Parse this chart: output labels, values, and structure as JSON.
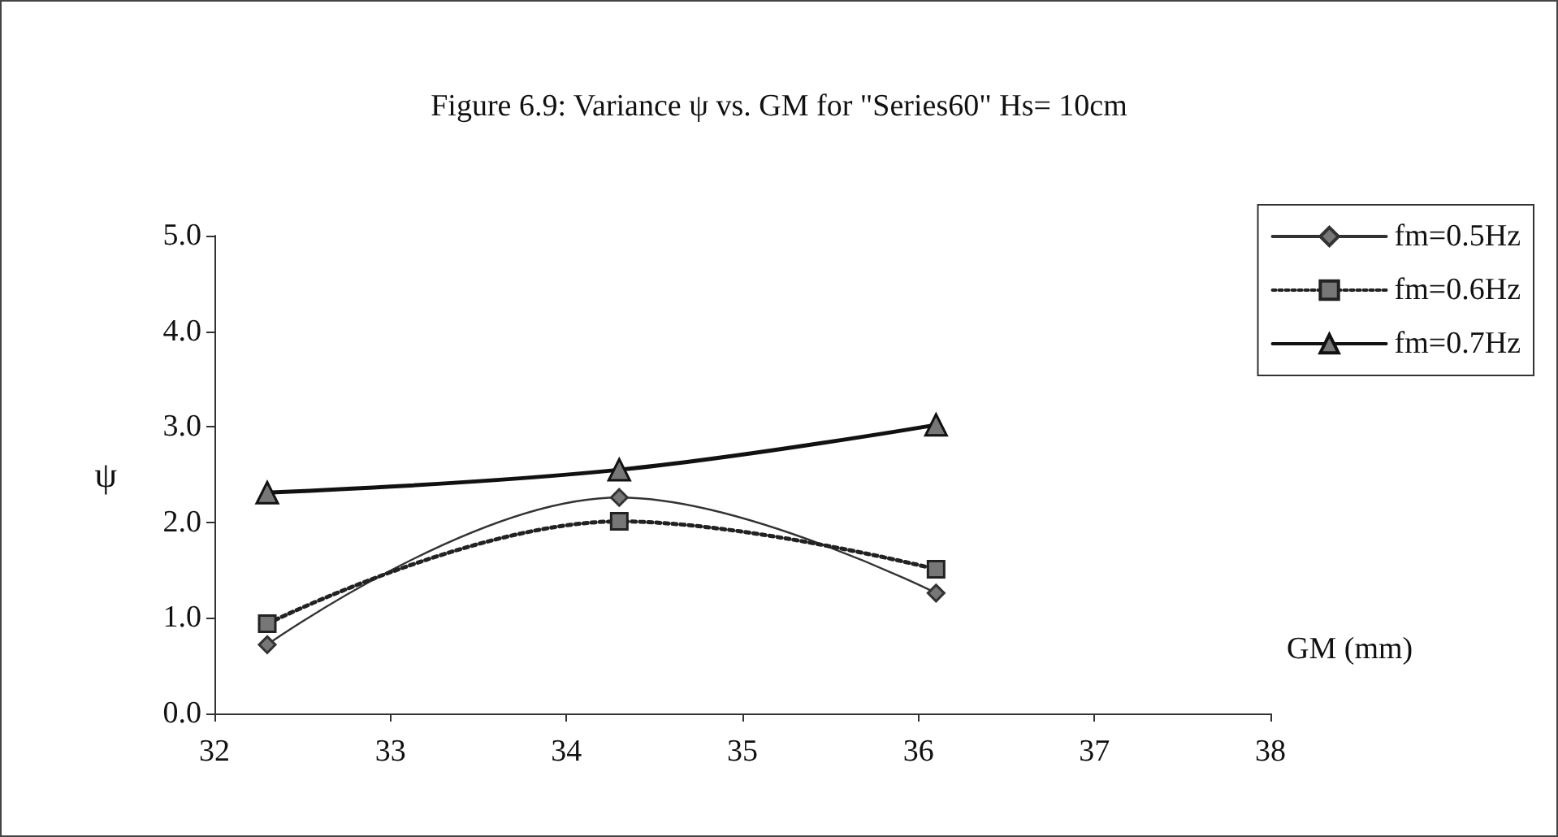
{
  "chart_data": {
    "type": "line",
    "title": "Figure 6.9: Variance ψ vs. GM for \"Series60\" Hs= 10cm",
    "xlabel": "GM (mm)",
    "ylabel": "ψ",
    "x": [
      32.3,
      34.3,
      36.1
    ],
    "series": [
      {
        "name": "fm=0.5Hz",
        "color": "#333333",
        "marker": "diamond",
        "line_style": "solid",
        "values": [
          0.72,
          2.26,
          1.26
        ]
      },
      {
        "name": "fm=0.6Hz",
        "color": "#222222",
        "marker": "square",
        "line_style": "dotted",
        "values": [
          0.94,
          2.01,
          1.51
        ]
      },
      {
        "name": "fm=0.7Hz",
        "color": "#111111",
        "marker": "triangle",
        "line_style": "solid",
        "values": [
          2.31,
          2.55,
          3.02
        ]
      }
    ],
    "xlim": [
      32,
      38
    ],
    "xticks": [
      32,
      33,
      34,
      35,
      36,
      37,
      38
    ],
    "ylim": [
      0,
      5
    ],
    "yticks": [
      {
        "value": 0,
        "label": "0.0"
      },
      {
        "value": 1,
        "label": "1.0"
      },
      {
        "value": 2,
        "label": "2.0"
      },
      {
        "value": 3,
        "label": "3.0"
      },
      {
        "value": 4,
        "label": "4.0"
      },
      {
        "value": 5,
        "label": "5.0"
      }
    ],
    "grid": false,
    "legend": "right"
  }
}
